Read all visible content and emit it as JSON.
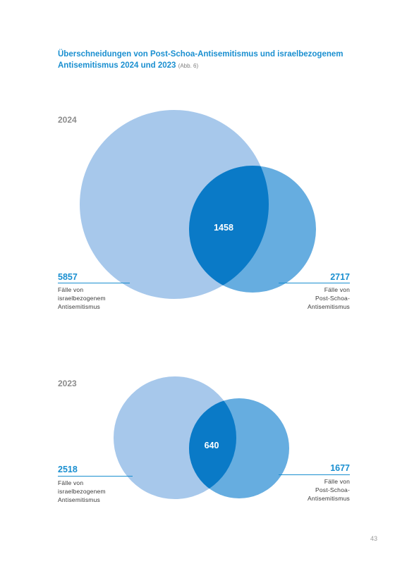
{
  "title": {
    "text": "Überschneidungen von Post-Schoa-Antisemitismus und israelbezogenem Antisemitismus 2024 und 2023",
    "figure_ref": "(Abb. 6)"
  },
  "colors": {
    "large_circle": "#a7c8eb",
    "small_circle": "#66ade0",
    "overlap": "#0a7ac7",
    "accent": "#1a8fd0"
  },
  "chart_data": [
    {
      "type": "venn",
      "year": "2024",
      "sets": [
        {
          "value": "5857",
          "label_lines": [
            "Fälle von",
            "israelbezogenem",
            "Antisemitismus"
          ]
        },
        {
          "value": "2717",
          "label_lines": [
            "Fälle von",
            "Post-Schoa-",
            "Antisemitismus"
          ]
        }
      ],
      "intersection": "1458"
    },
    {
      "type": "venn",
      "year": "2023",
      "sets": [
        {
          "value": "2518",
          "label_lines": [
            "Fälle von",
            "israelbezogenem",
            "Antisemitismus"
          ]
        },
        {
          "value": "1677",
          "label_lines": [
            "Fälle von",
            "Post-Schoa-",
            "Antisemitismus"
          ]
        }
      ],
      "intersection": "640"
    }
  ],
  "page_number": "43"
}
